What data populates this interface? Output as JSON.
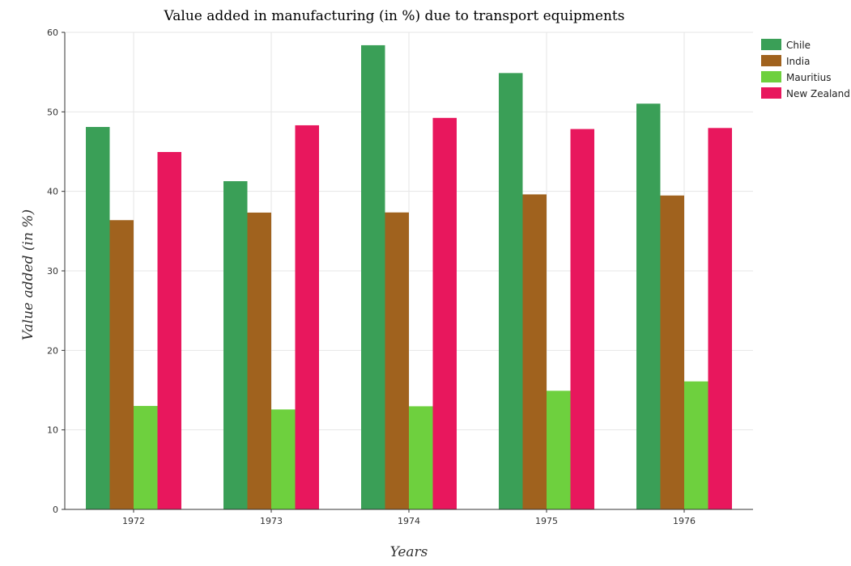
{
  "chart_data": {
    "type": "bar",
    "title": "Value added in manufacturing (in %) due to transport equipments",
    "xlabel": "Years",
    "ylabel": "Value added (in %)",
    "categories": [
      "1972",
      "1973",
      "1974",
      "1975",
      "1976"
    ],
    "ylim": [
      0,
      60
    ],
    "yticks": [
      0,
      10,
      20,
      30,
      40,
      50,
      60
    ],
    "grid": true,
    "legend_position": "top-right",
    "series": [
      {
        "name": "Chile",
        "color": "#3a9f57",
        "values": [
          48.1,
          41.28,
          58.38,
          54.88,
          51.03
        ]
      },
      {
        "name": "India",
        "color": "#a0621e",
        "values": [
          36.38,
          37.33,
          37.35,
          39.62,
          39.48
        ]
      },
      {
        "name": "Mauritius",
        "color": "#6ed03e",
        "values": [
          13.01,
          12.57,
          12.97,
          14.92,
          16.1
        ]
      },
      {
        "name": "New Zealand",
        "color": "#e8175d",
        "values": [
          44.95,
          48.31,
          49.24,
          47.84,
          47.97
        ]
      }
    ]
  }
}
